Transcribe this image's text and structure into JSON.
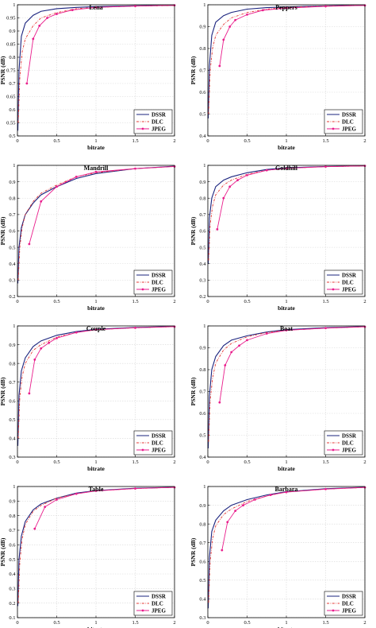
{
  "colors": {
    "DSSR": "#1a237e",
    "DLC": "#e53935",
    "JPEG": "#e91e8c"
  },
  "chart_data": [
    {
      "type": "line",
      "title": "Lena",
      "xlabel": "bitrate",
      "ylabel": "PSNR (dB)",
      "xlim": [
        0,
        2
      ],
      "ylim": [
        0.5,
        1.0
      ],
      "yticks": [
        0.5,
        0.55,
        0.6,
        0.65,
        0.7,
        0.75,
        0.8,
        0.85,
        0.9,
        0.95,
        1
      ],
      "xticks": [
        0,
        0.5,
        1,
        1.5,
        2
      ],
      "ytick_labels": [
        "0.5",
        "0.55",
        "0.6",
        "0.65",
        "0.7",
        "0.75",
        "0.8",
        "0.85",
        "0.9",
        "0.95",
        "1"
      ],
      "xtick_labels": [
        "0",
        "0.5",
        "1",
        "1.5",
        "2"
      ],
      "legend": "bottom-right",
      "grid": true,
      "series": [
        {
          "name": "DSSR",
          "x": [
            0.005,
            0.02,
            0.05,
            0.1,
            0.2,
            0.3,
            0.5,
            0.75,
            1.0,
            1.5,
            2.0
          ],
          "y": [
            0.52,
            0.75,
            0.88,
            0.93,
            0.96,
            0.975,
            0.985,
            0.99,
            0.993,
            0.996,
            0.998
          ]
        },
        {
          "name": "DLC",
          "x": [
            0.01,
            0.03,
            0.06,
            0.1,
            0.2,
            0.3,
            0.5,
            0.75,
            1.0,
            1.5,
            2.0
          ],
          "y": [
            0.55,
            0.72,
            0.82,
            0.87,
            0.92,
            0.95,
            0.97,
            0.985,
            0.99,
            0.995,
            0.997
          ]
        },
        {
          "name": "JPEG",
          "x": [
            0.12,
            0.2,
            0.28,
            0.38,
            0.5,
            0.7,
            1.0,
            1.5,
            2.0
          ],
          "y": [
            0.7,
            0.87,
            0.92,
            0.95,
            0.965,
            0.98,
            0.99,
            0.995,
            0.998
          ]
        }
      ]
    },
    {
      "type": "line",
      "title": "Peppers",
      "xlabel": "bitrate",
      "ylabel": "PSNR (dB)",
      "xlim": [
        0,
        2
      ],
      "ylim": [
        0.4,
        1.0
      ],
      "yticks": [
        0.4,
        0.5,
        0.6,
        0.7,
        0.8,
        0.9,
        1
      ],
      "xticks": [
        0,
        0.5,
        1,
        1.5,
        2
      ],
      "ytick_labels": [
        "0.4",
        "0.5",
        "0.6",
        "0.7",
        "0.8",
        "0.9",
        "1"
      ],
      "xtick_labels": [
        "0",
        "0.5",
        "1",
        "1.5",
        "2"
      ],
      "legend": "bottom-right",
      "grid": true,
      "series": [
        {
          "name": "DSSR",
          "x": [
            0.005,
            0.02,
            0.05,
            0.1,
            0.2,
            0.3,
            0.5,
            0.75,
            1.0,
            1.5,
            2.0
          ],
          "y": [
            0.48,
            0.72,
            0.86,
            0.92,
            0.95,
            0.965,
            0.98,
            0.987,
            0.99,
            0.995,
            0.998
          ]
        },
        {
          "name": "DLC",
          "x": [
            0.01,
            0.03,
            0.06,
            0.1,
            0.2,
            0.3,
            0.5,
            0.75,
            1.0,
            1.5,
            2.0
          ],
          "y": [
            0.5,
            0.7,
            0.8,
            0.86,
            0.91,
            0.94,
            0.965,
            0.98,
            0.988,
            0.994,
            0.997
          ]
        },
        {
          "name": "JPEG",
          "x": [
            0.15,
            0.2,
            0.28,
            0.35,
            0.5,
            0.7,
            1.0,
            1.5,
            2.0
          ],
          "y": [
            0.72,
            0.84,
            0.9,
            0.93,
            0.955,
            0.975,
            0.985,
            0.993,
            0.997
          ]
        }
      ]
    },
    {
      "type": "line",
      "title": "Mandrill",
      "xlabel": "bitrate",
      "ylabel": "PSNR (dB)",
      "xlim": [
        0,
        2
      ],
      "ylim": [
        0.2,
        1.0
      ],
      "yticks": [
        0.2,
        0.3,
        0.4,
        0.5,
        0.6,
        0.7,
        0.8,
        0.9,
        1
      ],
      "xticks": [
        0,
        0.5,
        1,
        1.5,
        2
      ],
      "ytick_labels": [
        "0.2",
        "0.3",
        "0.4",
        "0.5",
        "0.6",
        "0.7",
        "0.8",
        "0.9",
        "1"
      ],
      "xtick_labels": [
        "0",
        "0.5",
        "1",
        "1.5",
        "2"
      ],
      "legend": "bottom-right",
      "grid": true,
      "series": [
        {
          "name": "DSSR",
          "x": [
            0.005,
            0.02,
            0.05,
            0.1,
            0.2,
            0.3,
            0.5,
            0.75,
            1.0,
            1.5,
            2.0
          ],
          "y": [
            0.28,
            0.5,
            0.62,
            0.7,
            0.77,
            0.82,
            0.87,
            0.92,
            0.95,
            0.98,
            0.995
          ]
        },
        {
          "name": "DLC",
          "x": [
            0.01,
            0.03,
            0.06,
            0.1,
            0.2,
            0.3,
            0.5,
            0.75,
            1.0,
            1.5,
            2.0
          ],
          "y": [
            0.3,
            0.5,
            0.62,
            0.7,
            0.78,
            0.83,
            0.88,
            0.93,
            0.955,
            0.98,
            0.993
          ]
        },
        {
          "name": "JPEG",
          "x": [
            0.15,
            0.3,
            0.5,
            0.75,
            1.0,
            1.5,
            2.0
          ],
          "y": [
            0.52,
            0.78,
            0.87,
            0.93,
            0.96,
            0.98,
            0.993
          ]
        }
      ]
    },
    {
      "type": "line",
      "title": "Goldhill",
      "xlabel": "bitrate",
      "ylabel": "PSNR (dB)",
      "xlim": [
        0,
        2
      ],
      "ylim": [
        0.2,
        1.0
      ],
      "yticks": [
        0.2,
        0.3,
        0.4,
        0.5,
        0.6,
        0.7,
        0.8,
        0.9,
        1
      ],
      "xticks": [
        0,
        0.5,
        1,
        1.5,
        2
      ],
      "ytick_labels": [
        "0.2",
        "0.3",
        "0.4",
        "0.5",
        "0.6",
        "0.7",
        "0.8",
        "0.9",
        "1"
      ],
      "xtick_labels": [
        "0",
        "0.5",
        "1",
        "1.5",
        "2"
      ],
      "legend": "bottom-right",
      "grid": true,
      "series": [
        {
          "name": "DSSR",
          "x": [
            0.005,
            0.02,
            0.05,
            0.1,
            0.2,
            0.3,
            0.5,
            0.75,
            1.0,
            1.5,
            2.0
          ],
          "y": [
            0.4,
            0.68,
            0.8,
            0.87,
            0.91,
            0.93,
            0.955,
            0.975,
            0.985,
            0.993,
            0.997
          ]
        },
        {
          "name": "DLC",
          "x": [
            0.01,
            0.03,
            0.06,
            0.1,
            0.2,
            0.3,
            0.5,
            0.75,
            1.0,
            1.5,
            2.0
          ],
          "y": [
            0.42,
            0.64,
            0.75,
            0.82,
            0.88,
            0.91,
            0.945,
            0.97,
            0.982,
            0.992,
            0.996
          ]
        },
        {
          "name": "JPEG",
          "x": [
            0.12,
            0.2,
            0.28,
            0.38,
            0.5,
            0.75,
            1.0,
            1.5,
            2.0
          ],
          "y": [
            0.61,
            0.8,
            0.87,
            0.91,
            0.94,
            0.97,
            0.982,
            0.992,
            0.997
          ]
        }
      ]
    },
    {
      "type": "line",
      "title": "Couple",
      "xlabel": "bitrate",
      "ylabel": "PSNR (dB)",
      "xlim": [
        0,
        2
      ],
      "ylim": [
        0.3,
        1.0
      ],
      "yticks": [
        0.3,
        0.4,
        0.5,
        0.6,
        0.7,
        0.8,
        0.9,
        1
      ],
      "xticks": [
        0,
        0.5,
        1,
        1.5,
        2
      ],
      "ytick_labels": [
        "0.3",
        "0.4",
        "0.5",
        "0.6",
        "0.7",
        "0.8",
        "0.9",
        "1"
      ],
      "xtick_labels": [
        "0",
        "0.5",
        "1",
        "1.5",
        "2"
      ],
      "legend": "bottom-right",
      "grid": true,
      "series": [
        {
          "name": "DSSR",
          "x": [
            0.005,
            0.02,
            0.05,
            0.1,
            0.2,
            0.3,
            0.5,
            0.75,
            1.0,
            1.5,
            2.0
          ],
          "y": [
            0.36,
            0.63,
            0.76,
            0.83,
            0.89,
            0.92,
            0.95,
            0.97,
            0.982,
            0.992,
            0.997
          ]
        },
        {
          "name": "DLC",
          "x": [
            0.01,
            0.03,
            0.06,
            0.1,
            0.2,
            0.3,
            0.5,
            0.75,
            1.0,
            1.5,
            2.0
          ],
          "y": [
            0.4,
            0.62,
            0.73,
            0.8,
            0.87,
            0.9,
            0.94,
            0.965,
            0.98,
            0.99,
            0.996
          ]
        },
        {
          "name": "JPEG",
          "x": [
            0.15,
            0.22,
            0.3,
            0.4,
            0.5,
            0.75,
            1.0,
            1.5,
            2.0
          ],
          "y": [
            0.64,
            0.82,
            0.88,
            0.91,
            0.935,
            0.965,
            0.98,
            0.99,
            0.996
          ]
        }
      ]
    },
    {
      "type": "line",
      "title": "Boat",
      "xlabel": "bitrate",
      "ylabel": "PSNR (dB)",
      "xlim": [
        0,
        2
      ],
      "ylim": [
        0.4,
        1.0
      ],
      "yticks": [
        0.4,
        0.5,
        0.6,
        0.7,
        0.8,
        0.9,
        1
      ],
      "xticks": [
        0,
        0.5,
        1,
        1.5,
        2
      ],
      "ytick_labels": [
        "0.4",
        "0.5",
        "0.6",
        "0.7",
        "0.8",
        "0.9",
        "1"
      ],
      "xtick_labels": [
        "0",
        "0.5",
        "1",
        "1.5",
        "2"
      ],
      "legend": "bottom-right",
      "grid": true,
      "series": [
        {
          "name": "DSSR",
          "x": [
            0.005,
            0.02,
            0.05,
            0.1,
            0.2,
            0.3,
            0.5,
            0.75,
            1.0,
            1.5,
            2.0
          ],
          "y": [
            0.44,
            0.68,
            0.8,
            0.86,
            0.91,
            0.935,
            0.955,
            0.972,
            0.983,
            0.992,
            0.997
          ]
        },
        {
          "name": "DLC",
          "x": [
            0.01,
            0.03,
            0.06,
            0.1,
            0.2,
            0.3,
            0.5,
            0.75,
            1.0,
            1.5,
            2.0
          ],
          "y": [
            0.47,
            0.66,
            0.76,
            0.83,
            0.89,
            0.92,
            0.95,
            0.97,
            0.98,
            0.99,
            0.996
          ]
        },
        {
          "name": "JPEG",
          "x": [
            0.15,
            0.22,
            0.3,
            0.4,
            0.5,
            0.75,
            1.0,
            1.5,
            2.0
          ],
          "y": [
            0.65,
            0.82,
            0.88,
            0.91,
            0.935,
            0.965,
            0.98,
            0.99,
            0.996
          ]
        }
      ]
    },
    {
      "type": "line",
      "title": "Table",
      "xlabel": "bitrate",
      "ylabel": "PSNR (dB)",
      "xlim": [
        0,
        2
      ],
      "ylim": [
        0.1,
        1.0
      ],
      "yticks": [
        0.1,
        0.2,
        0.3,
        0.4,
        0.5,
        0.6,
        0.7,
        0.8,
        0.9,
        1
      ],
      "xticks": [
        0,
        0.5,
        1,
        1.5,
        2
      ],
      "ytick_labels": [
        "0.1",
        "0.2",
        "0.3",
        "0.4",
        "0.5",
        "0.6",
        "0.7",
        "0.8",
        "0.9",
        "1"
      ],
      "xtick_labels": [
        "0",
        "0.5",
        "1",
        "1.5",
        "2"
      ],
      "legend": "bottom-right",
      "grid": true,
      "series": [
        {
          "name": "DSSR",
          "x": [
            0.005,
            0.02,
            0.05,
            0.1,
            0.2,
            0.3,
            0.5,
            0.75,
            1.0,
            1.5,
            2.0
          ],
          "y": [
            0.18,
            0.5,
            0.66,
            0.76,
            0.84,
            0.88,
            0.92,
            0.955,
            0.972,
            0.988,
            0.995
          ]
        },
        {
          "name": "DLC",
          "x": [
            0.01,
            0.03,
            0.06,
            0.1,
            0.2,
            0.3,
            0.5,
            0.75,
            1.0,
            1.5,
            2.0
          ],
          "y": [
            0.2,
            0.48,
            0.64,
            0.74,
            0.83,
            0.87,
            0.92,
            0.95,
            0.97,
            0.986,
            0.994
          ]
        },
        {
          "name": "JPEG",
          "x": [
            0.22,
            0.35,
            0.5,
            0.75,
            1.0,
            1.5,
            2.0
          ],
          "y": [
            0.71,
            0.86,
            0.91,
            0.95,
            0.97,
            0.986,
            0.994
          ]
        }
      ]
    },
    {
      "type": "line",
      "title": "Barbara",
      "xlabel": "bitrate",
      "ylabel": "PSNR (dB)",
      "xlim": [
        0,
        2
      ],
      "ylim": [
        0.3,
        1.0
      ],
      "yticks": [
        0.3,
        0.4,
        0.5,
        0.6,
        0.7,
        0.8,
        0.9,
        1
      ],
      "xticks": [
        0,
        0.5,
        1,
        1.5,
        2
      ],
      "ytick_labels": [
        "0.3",
        "0.4",
        "0.5",
        "0.6",
        "0.7",
        "0.8",
        "0.9",
        "1"
      ],
      "xtick_labels": [
        "0",
        "0.5",
        "1",
        "1.5",
        "2"
      ],
      "legend": "bottom-right",
      "grid": true,
      "series": [
        {
          "name": "DSSR",
          "x": [
            0.005,
            0.02,
            0.05,
            0.1,
            0.2,
            0.3,
            0.5,
            0.75,
            1.0,
            1.5,
            2.0
          ],
          "y": [
            0.35,
            0.62,
            0.76,
            0.82,
            0.87,
            0.9,
            0.93,
            0.955,
            0.972,
            0.988,
            0.996
          ]
        },
        {
          "name": "DLC",
          "x": [
            0.01,
            0.03,
            0.06,
            0.1,
            0.2,
            0.3,
            0.5,
            0.75,
            1.0,
            1.5,
            2.0
          ],
          "y": [
            0.38,
            0.6,
            0.72,
            0.79,
            0.85,
            0.88,
            0.92,
            0.95,
            0.97,
            0.986,
            0.995
          ]
        },
        {
          "name": "JPEG",
          "x": [
            0.18,
            0.25,
            0.35,
            0.45,
            0.6,
            0.8,
            1.0,
            1.5,
            2.0
          ],
          "y": [
            0.66,
            0.81,
            0.87,
            0.9,
            0.93,
            0.955,
            0.97,
            0.986,
            0.995
          ]
        }
      ]
    }
  ]
}
